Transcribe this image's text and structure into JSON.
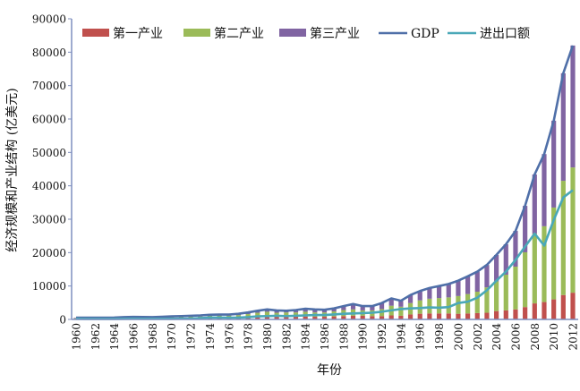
{
  "chart_data": {
    "type": "bar",
    "subtype": "stacked bar with lines",
    "title": "",
    "xlabel": "年份",
    "ylabel": "经济规模和产业结构 (亿美元)",
    "ylim": [
      0,
      90000
    ],
    "yticks": [
      0,
      10000,
      20000,
      30000,
      40000,
      50000,
      60000,
      70000,
      80000,
      90000
    ],
    "xticks": [
      "1960",
      "1962",
      "1964",
      "1966",
      "1968",
      "1970",
      "1972",
      "1974",
      "1976",
      "1978",
      "1980",
      "1982",
      "1984",
      "1986",
      "1988",
      "1990",
      "1992",
      "1994",
      "1996",
      "1998",
      "2000",
      "2002",
      "2004",
      "2006",
      "2008",
      "2010",
      "2012"
    ],
    "legend_position": "top",
    "grid": false,
    "categories": [
      1960,
      1961,
      1962,
      1963,
      1964,
      1965,
      1966,
      1967,
      1968,
      1969,
      1970,
      1971,
      1972,
      1973,
      1974,
      1975,
      1976,
      1977,
      1978,
      1979,
      1980,
      1981,
      1982,
      1983,
      1984,
      1985,
      1986,
      1987,
      1988,
      1989,
      1990,
      1991,
      1992,
      1993,
      1994,
      1995,
      1996,
      1997,
      1998,
      1999,
      2000,
      2001,
      2002,
      2003,
      2004,
      2005,
      2006,
      2007,
      2008,
      2009,
      2010,
      2011,
      2012
    ],
    "series": [
      {
        "name": "第一产业",
        "kind": "bar",
        "color": "#c0504d",
        "values": [
          120,
          180,
          200,
          200,
          200,
          260,
          280,
          280,
          300,
          300,
          320,
          350,
          350,
          400,
          500,
          500,
          500,
          500,
          600,
          800,
          900,
          800,
          900,
          900,
          900,
          800,
          800,
          900,
          1000,
          1100,
          1100,
          1000,
          1000,
          1200,
          1100,
          1500,
          1700,
          1800,
          1800,
          1800,
          1700,
          1800,
          1900,
          2000,
          2500,
          2700,
          3000,
          3700,
          4800,
          5200,
          6000,
          7300,
          8000
        ]
      },
      {
        "name": "第二产业",
        "kind": "bar",
        "color": "#9bbb59",
        "values": [
          220,
          180,
          170,
          190,
          200,
          250,
          330,
          290,
          280,
          330,
          400,
          450,
          480,
          500,
          600,
          650,
          650,
          800,
          1000,
          1200,
          1400,
          1200,
          1200,
          1200,
          1400,
          1300,
          1300,
          1500,
          1800,
          1900,
          1600,
          1700,
          2100,
          2900,
          2700,
          3400,
          4000,
          4400,
          4600,
          4800,
          5300,
          5800,
          6400,
          7600,
          8900,
          10700,
          12800,
          16400,
          20900,
          22700,
          27500,
          34200,
          37500
        ]
      },
      {
        "name": "第三产业",
        "kind": "bar",
        "color": "#8064a2",
        "values": [
          160,
          140,
          130,
          120,
          160,
          190,
          150,
          150,
          120,
          160,
          200,
          200,
          270,
          300,
          300,
          300,
          300,
          400,
          500,
          600,
          700,
          700,
          500,
          700,
          900,
          900,
          800,
          900,
          1200,
          1600,
          1300,
          1300,
          1800,
          2200,
          1800,
          2400,
          2800,
          3200,
          3600,
          4000,
          4600,
          5300,
          6000,
          6700,
          7900,
          9100,
          10700,
          13900,
          17700,
          21600,
          26000,
          32200,
          36500
        ]
      },
      {
        "name": "GDP",
        "kind": "line",
        "color": "#4f6fa8",
        "values": [
          500,
          500,
          500,
          510,
          560,
          700,
          760,
          720,
          700,
          790,
          920,
          1000,
          1100,
          1200,
          1400,
          1450,
          1450,
          1700,
          2100,
          2600,
          3000,
          2700,
          2600,
          2800,
          3200,
          3000,
          2900,
          3300,
          4000,
          4600,
          4000,
          4000,
          4900,
          6300,
          5600,
          7300,
          8500,
          9400,
          10000,
          10600,
          11600,
          12900,
          14300,
          16300,
          19300,
          22500,
          26500,
          34000,
          43400,
          49500,
          59500,
          73700,
          82000
        ]
      },
      {
        "name": "进出口额",
        "kind": "line",
        "color": "#4aa8b8",
        "values": [
          200,
          150,
          150,
          150,
          170,
          200,
          220,
          200,
          200,
          200,
          200,
          220,
          260,
          400,
          560,
          560,
          500,
          560,
          700,
          900,
          1000,
          1100,
          1000,
          1100,
          1200,
          1300,
          1300,
          1500,
          1700,
          1800,
          1900,
          2000,
          2300,
          2700,
          3100,
          3300,
          3400,
          3600,
          3500,
          3700,
          4900,
          5300,
          6500,
          8700,
          11600,
          14300,
          17800,
          21800,
          25700,
          22100,
          29800,
          36500,
          38700
        ]
      }
    ]
  },
  "axis_color": "#7f8fbf"
}
